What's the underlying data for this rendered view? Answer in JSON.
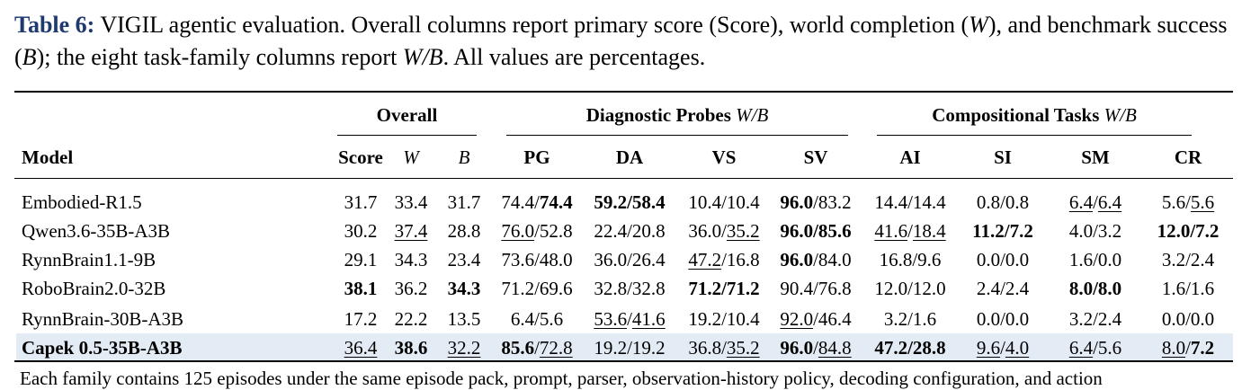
{
  "caption": [
    {
      "text": "Table 6:",
      "bold": true
    },
    {
      "text": " VIGIL agentic evaluation. Overall columns report primary score (Score), world completion ("
    },
    {
      "text": "W",
      "italic": true
    },
    {
      "text": "), and benchmark success ("
    },
    {
      "text": "B",
      "italic": true
    },
    {
      "text": "); the eight task-family columns report "
    },
    {
      "text": "W/B",
      "italic": true
    },
    {
      "text": ". All values are percentages."
    }
  ],
  "table": {
    "groups": [
      [
        {
          "text": "Overall"
        }
      ],
      [
        {
          "text": "Diagnostic Probes "
        },
        {
          "text": "W/B",
          "italic": true,
          "bold": false
        }
      ],
      [
        {
          "text": "Compositional Tasks "
        },
        {
          "text": "W/B",
          "italic": true,
          "bold": false
        }
      ]
    ],
    "columns": [
      [
        {
          "text": "Model"
        }
      ],
      [
        {
          "text": "Score"
        }
      ],
      [
        {
          "text": "W",
          "italic": true,
          "bold": false
        }
      ],
      [
        {
          "text": "B",
          "italic": true,
          "bold": false
        }
      ],
      [
        {
          "text": "PG"
        }
      ],
      [
        {
          "text": "DA"
        }
      ],
      [
        {
          "text": "VS"
        }
      ],
      [
        {
          "text": "SV"
        }
      ],
      [
        {
          "text": "AI"
        }
      ],
      [
        {
          "text": "SI"
        }
      ],
      [
        {
          "text": "SM"
        }
      ],
      [
        {
          "text": "CR"
        }
      ]
    ],
    "rows": [
      [
        [
          {
            "text": "Embodied-R1.5"
          }
        ],
        [
          {
            "text": "31.7"
          }
        ],
        [
          {
            "text": "33.4"
          }
        ],
        [
          {
            "text": "31.7"
          }
        ],
        [
          {
            "text": "74.4/"
          },
          {
            "text": "74.4",
            "bold": true
          }
        ],
        [
          {
            "text": "59.2/58.4",
            "bold": true
          }
        ],
        [
          {
            "text": "10.4/10.4"
          }
        ],
        [
          {
            "text": "96.0",
            "bold": true
          },
          {
            "text": "/83.2"
          }
        ],
        [
          {
            "text": "14.4/14.4"
          }
        ],
        [
          {
            "text": "0.8/0.8"
          }
        ],
        [
          {
            "text": "6.4",
            "underline": true
          },
          {
            "text": "/"
          },
          {
            "text": "6.4",
            "underline": true
          }
        ],
        [
          {
            "text": "5.6/"
          },
          {
            "text": "5.6",
            "underline": true
          }
        ]
      ],
      [
        [
          {
            "text": "Qwen3.6-35B-A3B"
          }
        ],
        [
          {
            "text": "30.2"
          }
        ],
        [
          {
            "text": "37.4",
            "underline": true
          }
        ],
        [
          {
            "text": "28.8"
          }
        ],
        [
          {
            "text": "76.0",
            "underline": true
          },
          {
            "text": "/52.8"
          }
        ],
        [
          {
            "text": "22.4/20.8"
          }
        ],
        [
          {
            "text": "36.0/"
          },
          {
            "text": "35.2",
            "underline": true
          }
        ],
        [
          {
            "text": "96.0/85.6",
            "bold": true
          }
        ],
        [
          {
            "text": "41.6",
            "underline": true
          },
          {
            "text": "/"
          },
          {
            "text": "18.4",
            "underline": true
          }
        ],
        [
          {
            "text": "11.2/7.2",
            "bold": true
          }
        ],
        [
          {
            "text": "4.0/3.2"
          }
        ],
        [
          {
            "text": "12.0/7.2",
            "bold": true
          }
        ]
      ],
      [
        [
          {
            "text": "RynnBrain1.1-9B"
          }
        ],
        [
          {
            "text": "29.1"
          }
        ],
        [
          {
            "text": "34.3"
          }
        ],
        [
          {
            "text": "23.4"
          }
        ],
        [
          {
            "text": "73.6/48.0"
          }
        ],
        [
          {
            "text": "36.0/26.4"
          }
        ],
        [
          {
            "text": "47.2",
            "underline": true
          },
          {
            "text": "/16.8"
          }
        ],
        [
          {
            "text": "96.0",
            "bold": true
          },
          {
            "text": "/84.0"
          }
        ],
        [
          {
            "text": "16.8/9.6"
          }
        ],
        [
          {
            "text": "0.0/0.0"
          }
        ],
        [
          {
            "text": "1.6/0.0"
          }
        ],
        [
          {
            "text": "3.2/2.4"
          }
        ]
      ],
      [
        [
          {
            "text": "RoboBrain2.0-32B"
          }
        ],
        [
          {
            "text": "38.1",
            "bold": true
          }
        ],
        [
          {
            "text": "36.2"
          }
        ],
        [
          {
            "text": "34.3",
            "bold": true
          }
        ],
        [
          {
            "text": "71.2/69.6"
          }
        ],
        [
          {
            "text": "32.8/32.8"
          }
        ],
        [
          {
            "text": "71.2/71.2",
            "bold": true
          }
        ],
        [
          {
            "text": "90.4/76.8"
          }
        ],
        [
          {
            "text": "12.0/12.0"
          }
        ],
        [
          {
            "text": "2.4/2.4"
          }
        ],
        [
          {
            "text": "8.0/8.0",
            "bold": true
          }
        ],
        [
          {
            "text": "1.6/1.6"
          }
        ]
      ],
      [
        [
          {
            "text": "RynnBrain-30B-A3B"
          }
        ],
        [
          {
            "text": "17.2"
          }
        ],
        [
          {
            "text": "22.2"
          }
        ],
        [
          {
            "text": "13.5"
          }
        ],
        [
          {
            "text": "6.4/5.6"
          }
        ],
        [
          {
            "text": "53.6",
            "underline": true
          },
          {
            "text": "/"
          },
          {
            "text": "41.6",
            "underline": true
          }
        ],
        [
          {
            "text": "19.2/10.4"
          }
        ],
        [
          {
            "text": "92.0",
            "underline": true
          },
          {
            "text": "/46.4"
          }
        ],
        [
          {
            "text": "3.2/1.6"
          }
        ],
        [
          {
            "text": "0.0/0.0"
          }
        ],
        [
          {
            "text": "3.2/2.4"
          }
        ],
        [
          {
            "text": "0.0/0.0"
          }
        ]
      ],
      [
        [
          {
            "text": "Capek 0.5-35B-A3B",
            "bold": true
          }
        ],
        [
          {
            "text": "36.4",
            "underline": true
          }
        ],
        [
          {
            "text": "38.6",
            "bold": true
          }
        ],
        [
          {
            "text": "32.2",
            "underline": true
          }
        ],
        [
          {
            "text": "85.6",
            "bold": true
          },
          {
            "text": "/"
          },
          {
            "text": "72.8",
            "underline": true
          }
        ],
        [
          {
            "text": "19.2/19.2"
          }
        ],
        [
          {
            "text": "36.8/"
          },
          {
            "text": "35.2",
            "underline": true
          }
        ],
        [
          {
            "text": "96.0",
            "bold": true
          },
          {
            "text": "/"
          },
          {
            "text": "84.8",
            "underline": true
          }
        ],
        [
          {
            "text": "47.2/28.8",
            "bold": true
          }
        ],
        [
          {
            "text": "9.6",
            "underline": true
          },
          {
            "text": "/"
          },
          {
            "text": "4.0",
            "underline": true
          }
        ],
        [
          {
            "text": "6.4",
            "underline": true
          },
          {
            "text": "/5.6"
          }
        ],
        [
          {
            "text": "8.0",
            "underline": true
          },
          {
            "text": "/"
          },
          {
            "text": "7.2",
            "bold": true
          }
        ]
      ]
    ],
    "highlight_row": 5
  },
  "footnote": [
    {
      "text": "Each family contains 125 episodes under the same episode pack, prompt, parser, observation-history policy, decoding configuration, and action"
    }
  ]
}
